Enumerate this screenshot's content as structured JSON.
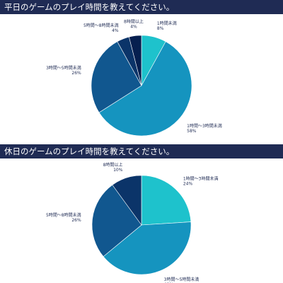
{
  "charts": [
    {
      "title": "平日のゲームのプレイ時間を教えてください。",
      "chart_data": {
        "type": "pie",
        "title": "平日のゲームのプレイ時間を教えてください。",
        "categories": [
          "1時間未満",
          "1時間〜3時間未満",
          "3時間〜5時間未満",
          "5時間〜8時間未満",
          "8時間以上"
        ],
        "values": [
          8,
          58,
          26,
          4,
          4
        ],
        "value_labels": [
          "8%",
          "58%",
          "26%",
          "4%",
          "4%"
        ],
        "colors": [
          "#1ec2cc",
          "#1594bf",
          "#11578f",
          "#0b3469",
          "#061f4f"
        ],
        "start": "top",
        "direction": "clockwise"
      }
    },
    {
      "title": "休日のゲームのプレイ時間を教えてください。",
      "chart_data": {
        "type": "pie",
        "title": "休日のゲームのプレイ時間を教えてください。",
        "categories": [
          "1時間〜3時間未満",
          "3時間〜5時間未満",
          "5時間〜8時間未満",
          "8時間以上"
        ],
        "values": [
          24,
          40,
          26,
          10
        ],
        "value_labels": [
          "24%",
          "40%",
          "26%",
          "10%"
        ],
        "colors": [
          "#1ec2cc",
          "#1594bf",
          "#11578f",
          "#0b3469"
        ],
        "start": "top",
        "direction": "clockwise"
      }
    }
  ]
}
